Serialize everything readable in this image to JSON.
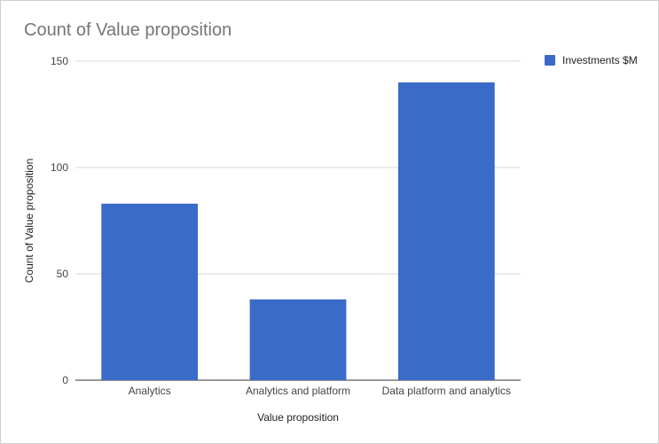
{
  "chart_data": {
    "type": "bar",
    "title": "Count of Value proposition",
    "xlabel": "Value proposition",
    "ylabel": "Count of Value proposition",
    "categories": [
      "Analytics",
      "Analytics and platform",
      "Data platform and analytics"
    ],
    "series": [
      {
        "name": "Investments $M",
        "values": [
          83,
          38,
          140
        ],
        "color": "#3b6bc9"
      }
    ],
    "ylim": [
      0,
      150
    ],
    "yticks": [
      "0",
      "50",
      "100",
      "150"
    ],
    "grid": true,
    "legend_position": "top-right"
  }
}
